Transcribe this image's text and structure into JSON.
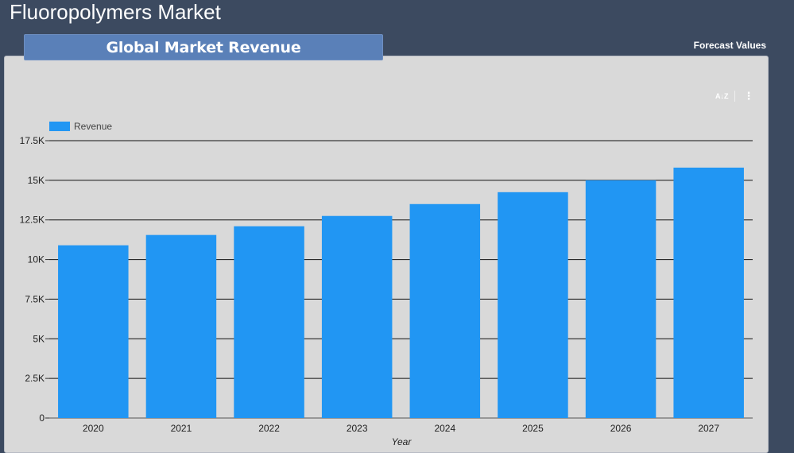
{
  "header": {
    "title": "Fluoropolymers Market",
    "tab_label": "Global Market Revenue",
    "forecast_label": "Forecast Values"
  },
  "toolbar": {
    "sort_icon": "A↓Z",
    "menu_icon": "⋮"
  },
  "colors": {
    "bar": "#2196f3",
    "background": "#3c4a60",
    "card": "#d9d9d9"
  },
  "chart_data": {
    "type": "bar",
    "categories": [
      "2020",
      "2021",
      "2022",
      "2023",
      "2024",
      "2025",
      "2026",
      "2027"
    ],
    "series": [
      {
        "name": "Revenue",
        "values": [
          10900,
          11550,
          12100,
          12750,
          13500,
          14250,
          15000,
          15800
        ]
      }
    ],
    "xlabel": "Year",
    "ylabel": "",
    "ylim": [
      0,
      17500
    ],
    "yticks": [
      0,
      2500,
      5000,
      7500,
      10000,
      12500,
      15000,
      17500
    ],
    "ytick_labels": [
      "0",
      "2.5K",
      "5K",
      "7.5K",
      "10K",
      "12.5K",
      "15K",
      "17.5K"
    ],
    "legend": {
      "position": "top-left"
    },
    "grid": true
  }
}
